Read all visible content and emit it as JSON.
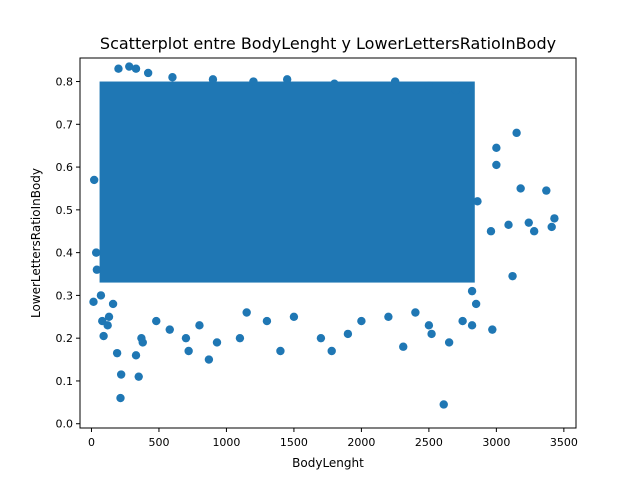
{
  "chart_data": {
    "type": "scatter",
    "title": "Scatterplot entre BodyLenght y LowerLettersRatioInBody",
    "xlabel": "BodyLenght",
    "ylabel": "LowerLettersRatioInBody",
    "xlim": [
      -85,
      3590
    ],
    "ylim": [
      -0.01,
      0.855
    ],
    "xticks": [
      0,
      500,
      1000,
      1500,
      2000,
      2500,
      3000,
      3500
    ],
    "yticks": [
      0.0,
      0.1,
      0.2,
      0.3,
      0.4,
      0.5,
      0.6,
      0.7,
      0.8
    ],
    "ytick_labels": [
      "0.0",
      "0.1",
      "0.2",
      "0.3",
      "0.4",
      "0.5",
      "0.6",
      "0.7",
      "0.8"
    ],
    "grid": false,
    "marker_color": "#1f77b4",
    "dense_region": {
      "x": [
        60,
        2840
      ],
      "y_low": 0.33,
      "y_high": 0.8
    },
    "series": [
      {
        "points": [
          [
            200,
            0.83
          ],
          [
            280,
            0.835
          ],
          [
            330,
            0.83
          ],
          [
            420,
            0.82
          ],
          [
            600,
            0.81
          ],
          [
            900,
            0.805
          ],
          [
            1200,
            0.8
          ],
          [
            1450,
            0.805
          ],
          [
            1800,
            0.795
          ],
          [
            2250,
            0.8
          ],
          [
            2500,
            0.79
          ],
          [
            2700,
            0.78
          ],
          [
            20,
            0.57
          ],
          [
            35,
            0.4
          ],
          [
            40,
            0.36
          ],
          [
            15,
            0.285
          ],
          [
            70,
            0.3
          ],
          [
            80,
            0.24
          ],
          [
            90,
            0.205
          ],
          [
            120,
            0.23
          ],
          [
            130,
            0.25
          ],
          [
            160,
            0.28
          ],
          [
            190,
            0.165
          ],
          [
            220,
            0.115
          ],
          [
            215,
            0.06
          ],
          [
            330,
            0.16
          ],
          [
            350,
            0.11
          ],
          [
            370,
            0.2
          ],
          [
            380,
            0.19
          ],
          [
            480,
            0.24
          ],
          [
            580,
            0.22
          ],
          [
            700,
            0.2
          ],
          [
            720,
            0.17
          ],
          [
            800,
            0.23
          ],
          [
            870,
            0.15
          ],
          [
            930,
            0.19
          ],
          [
            1100,
            0.2
          ],
          [
            1150,
            0.26
          ],
          [
            1300,
            0.24
          ],
          [
            1400,
            0.17
          ],
          [
            1500,
            0.25
          ],
          [
            1700,
            0.2
          ],
          [
            1780,
            0.17
          ],
          [
            1900,
            0.21
          ],
          [
            2000,
            0.24
          ],
          [
            2200,
            0.25
          ],
          [
            2310,
            0.18
          ],
          [
            2400,
            0.26
          ],
          [
            2500,
            0.23
          ],
          [
            2520,
            0.21
          ],
          [
            2610,
            0.045
          ],
          [
            2650,
            0.19
          ],
          [
            2750,
            0.24
          ],
          [
            2820,
            0.23
          ],
          [
            2850,
            0.28
          ],
          [
            2820,
            0.31
          ],
          [
            2860,
            0.52
          ],
          [
            2960,
            0.45
          ],
          [
            2970,
            0.22
          ],
          [
            3000,
            0.645
          ],
          [
            3000,
            0.605
          ],
          [
            3090,
            0.465
          ],
          [
            3120,
            0.345
          ],
          [
            3150,
            0.68
          ],
          [
            3180,
            0.55
          ],
          [
            3240,
            0.47
          ],
          [
            3280,
            0.45
          ],
          [
            3370,
            0.545
          ],
          [
            3410,
            0.46
          ],
          [
            3430,
            0.48
          ]
        ]
      }
    ]
  }
}
